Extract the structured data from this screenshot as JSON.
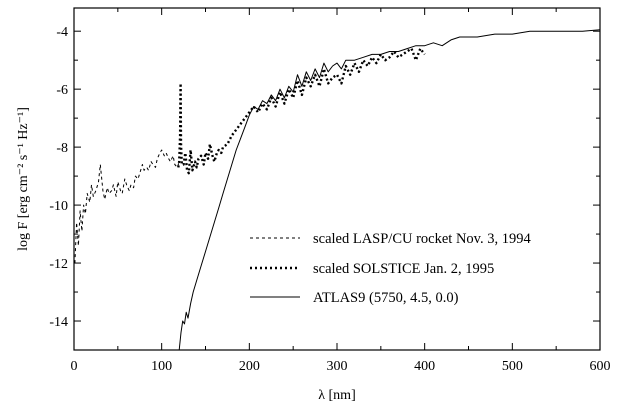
{
  "chart_data": {
    "type": "line",
    "title": "",
    "xlabel": "λ [nm]",
    "ylabel": "log F [erg cm⁻² s⁻¹ Hz⁻¹]",
    "xlim": [
      0,
      600
    ],
    "ylim": [
      -15,
      -3.2
    ],
    "x_ticks": [
      0,
      100,
      200,
      300,
      400,
      500,
      600
    ],
    "y_ticks": [
      -14,
      -12,
      -10,
      -8,
      -6,
      -4
    ],
    "grid": false,
    "legend_position": "bottom-right",
    "series": [
      {
        "name": "scaled LASP/CU rocket Nov. 3, 1994",
        "style": "dashed",
        "x": [
          1,
          3,
          5,
          7,
          9,
          11,
          13,
          15,
          18,
          20,
          22,
          25,
          28,
          30,
          33,
          35,
          38,
          40,
          43,
          45,
          48,
          50,
          53,
          55,
          58,
          60,
          63,
          65,
          68,
          70,
          73,
          75,
          78,
          80,
          83,
          85,
          88,
          90,
          93,
          95,
          98,
          100,
          103,
          105,
          108,
          110,
          113,
          115,
          118,
          120
        ],
        "y": [
          -12.0,
          -10.6,
          -11.4,
          -10.2,
          -10.9,
          -10.0,
          -10.3,
          -9.6,
          -9.9,
          -9.3,
          -9.7,
          -9.5,
          -9.2,
          -8.6,
          -9.5,
          -9.8,
          -9.4,
          -9.6,
          -9.5,
          -9.3,
          -9.7,
          -9.2,
          -9.5,
          -9.6,
          -9.1,
          -9.3,
          -9.5,
          -9.3,
          -9.4,
          -9.0,
          -9.1,
          -8.9,
          -8.6,
          -8.8,
          -8.7,
          -8.8,
          -8.5,
          -8.6,
          -8.7,
          -8.4,
          -8.2,
          -8.1,
          -8.3,
          -8.2,
          -8.4,
          -8.5,
          -8.3,
          -8.6,
          -8.7,
          -8.5
        ]
      },
      {
        "name": "scaled SOLSTICE Jan. 2, 1995",
        "style": "dotted",
        "x": [
          119,
          120,
          121,
          121.6,
          122,
          123,
          125,
          127,
          129,
          131,
          133,
          135,
          138,
          140,
          142,
          145,
          148,
          150,
          153,
          155,
          158,
          160,
          163,
          165,
          168,
          170,
          175,
          180,
          185,
          190,
          195,
          200,
          205,
          210,
          215,
          220,
          225,
          230,
          235,
          240,
          245,
          250,
          255,
          260,
          265,
          270,
          275,
          280,
          285,
          290,
          295,
          300,
          305,
          310,
          315,
          320,
          325,
          330,
          335,
          340,
          345,
          350,
          355,
          360,
          365,
          370,
          375,
          380,
          385,
          390,
          395,
          400
        ],
        "y": [
          -8.7,
          -8.5,
          -7.6,
          -5.8,
          -7.9,
          -8.6,
          -8.6,
          -8.2,
          -8.8,
          -8.9,
          -8.1,
          -8.8,
          -8.5,
          -8.7,
          -8.4,
          -8.3,
          -8.6,
          -8.2,
          -8.4,
          -7.9,
          -8.3,
          -8.5,
          -8.2,
          -8.1,
          -8.2,
          -8.0,
          -7.9,
          -7.6,
          -7.4,
          -7.2,
          -7.0,
          -6.8,
          -6.6,
          -6.8,
          -6.5,
          -6.7,
          -6.3,
          -6.6,
          -6.1,
          -6.5,
          -6.0,
          -6.3,
          -5.7,
          -6.2,
          -5.6,
          -5.9,
          -5.5,
          -5.9,
          -5.3,
          -5.8,
          -5.6,
          -5.5,
          -5.8,
          -5.2,
          -5.5,
          -5.1,
          -5.4,
          -5.0,
          -5.2,
          -4.9,
          -5.1,
          -4.8,
          -5.0,
          -4.9,
          -4.7,
          -4.9,
          -4.8,
          -4.7,
          -4.6,
          -5.0,
          -4.6,
          -4.8
        ]
      },
      {
        "name": "ATLAS9 (5750, 4.5, 0.0)",
        "style": "solid",
        "x": [
          120,
          122,
          124,
          126,
          128,
          130,
          133,
          136,
          140,
          145,
          150,
          155,
          160,
          165,
          170,
          175,
          180,
          185,
          190,
          195,
          200,
          205,
          210,
          215,
          220,
          225,
          230,
          235,
          240,
          245,
          250,
          255,
          260,
          265,
          270,
          275,
          280,
          285,
          290,
          295,
          300,
          305,
          310,
          320,
          330,
          340,
          350,
          360,
          370,
          380,
          390,
          400,
          410,
          420,
          430,
          440,
          450,
          460,
          480,
          500,
          520,
          540,
          560,
          580,
          600
        ],
        "y": [
          -15.0,
          -14.4,
          -14.0,
          -14.1,
          -13.7,
          -13.9,
          -13.4,
          -13.0,
          -12.6,
          -12.1,
          -11.6,
          -11.1,
          -10.6,
          -10.1,
          -9.6,
          -9.1,
          -8.6,
          -8.1,
          -7.7,
          -7.3,
          -6.9,
          -6.6,
          -6.7,
          -6.4,
          -6.5,
          -6.2,
          -6.4,
          -6.0,
          -6.3,
          -5.9,
          -6.1,
          -5.5,
          -5.9,
          -5.4,
          -5.7,
          -5.3,
          -5.6,
          -5.1,
          -5.4,
          -5.2,
          -5.1,
          -5.3,
          -5.0,
          -5.0,
          -4.9,
          -4.8,
          -4.8,
          -4.7,
          -4.7,
          -4.6,
          -4.5,
          -4.5,
          -4.4,
          -4.5,
          -4.3,
          -4.2,
          -4.2,
          -4.2,
          -4.1,
          -4.1,
          -4.0,
          -4.0,
          -4.0,
          -4.0,
          -3.95
        ]
      }
    ]
  }
}
